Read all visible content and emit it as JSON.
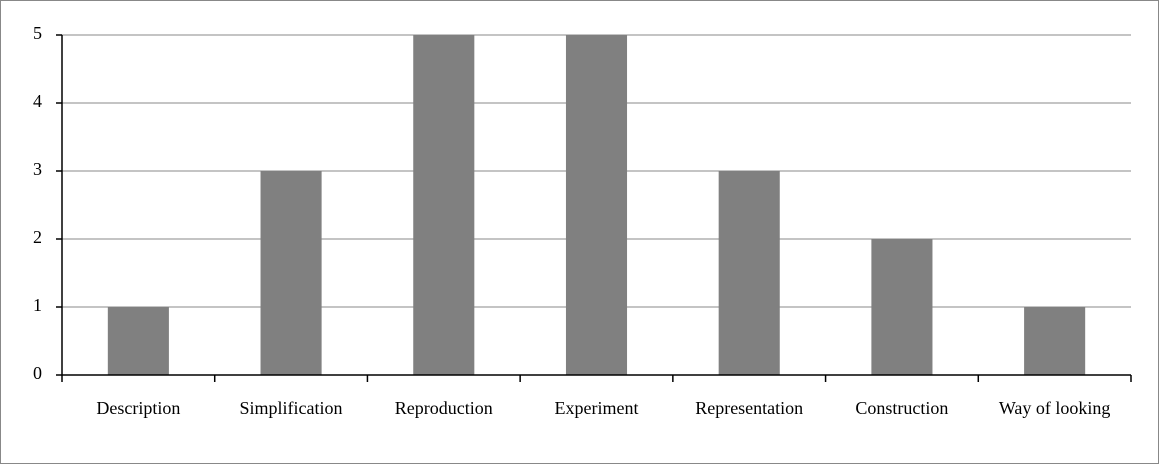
{
  "chart_data": {
    "type": "bar",
    "categories": [
      "Description",
      "Simplification",
      "Reproduction",
      "Experiment",
      "Representation",
      "Construction",
      "Way of looking"
    ],
    "values": [
      1,
      3,
      5,
      5,
      3,
      2,
      1
    ],
    "color": "#808080",
    "ylim": [
      0,
      5
    ],
    "yticks": [
      0,
      1,
      2,
      3,
      4,
      5
    ],
    "grid": true
  }
}
